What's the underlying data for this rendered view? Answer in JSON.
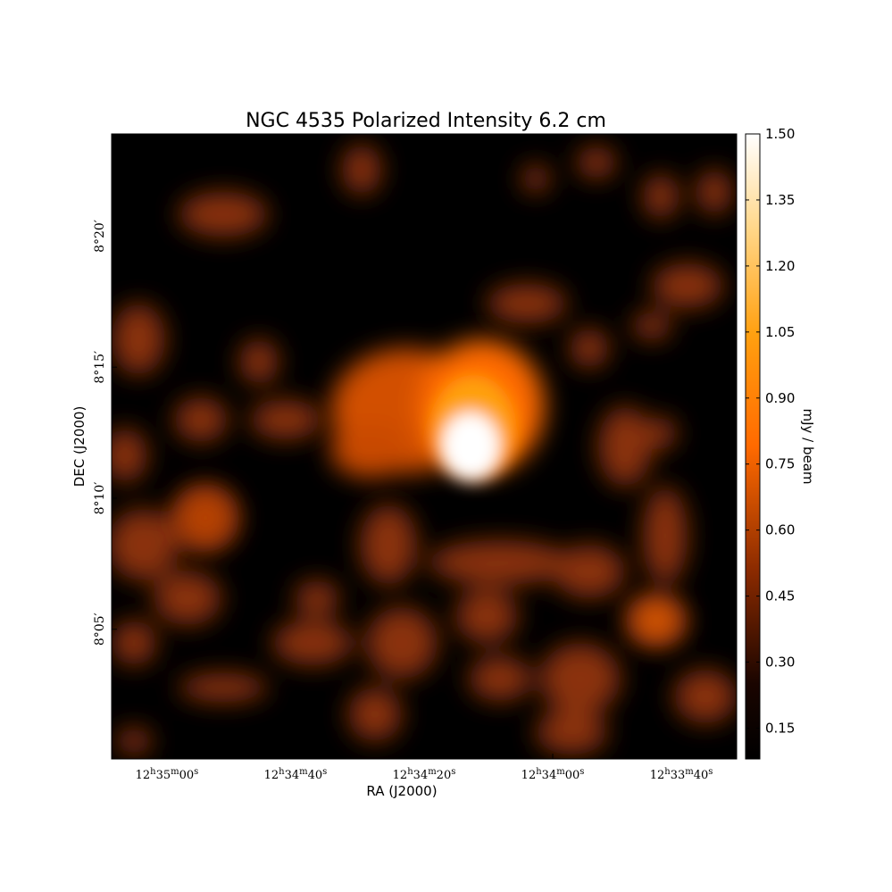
{
  "chart_data": {
    "type": "image",
    "title": "NGC 4535 Polarized Intensity 6.2 cm",
    "xlabel": "RA (J2000)",
    "ylabel": "DEC (J2000)",
    "xlim": [
      2108.6,
      2011.4
    ],
    "xticks": [
      {
        "value": 2100,
        "label": "12h35m00s"
      },
      {
        "value": 2080,
        "label": "12h34m40s"
      },
      {
        "value": 2060,
        "label": "12h34m20s"
      },
      {
        "value": 2040,
        "label": "12h34m00s"
      },
      {
        "value": 2020,
        "label": "12h33m40s"
      }
    ],
    "ylim": [
      480.05,
      503.9
    ],
    "yticks": [
      {
        "value": 500,
        "label": "8°20′"
      },
      {
        "value": 495,
        "label": "8°15′"
      },
      {
        "value": 490,
        "label": "8°10′"
      },
      {
        "value": 485,
        "label": "8°05′"
      }
    ],
    "colorbar": {
      "label": "mJy / beam",
      "clim": [
        0.08,
        1.5
      ],
      "ticks": [
        0.15,
        {
          "value": 0.3,
          "label": "0.30"
        },
        0.45,
        {
          "value": 0.6,
          "label": "0.60"
        },
        0.75,
        {
          "value": 0.9,
          "label": "0.90"
        },
        1.05,
        {
          "value": 1.2,
          "label": "1.20"
        },
        1.35,
        {
          "value": 1.5,
          "label": "1.50"
        }
      ]
    }
  }
}
